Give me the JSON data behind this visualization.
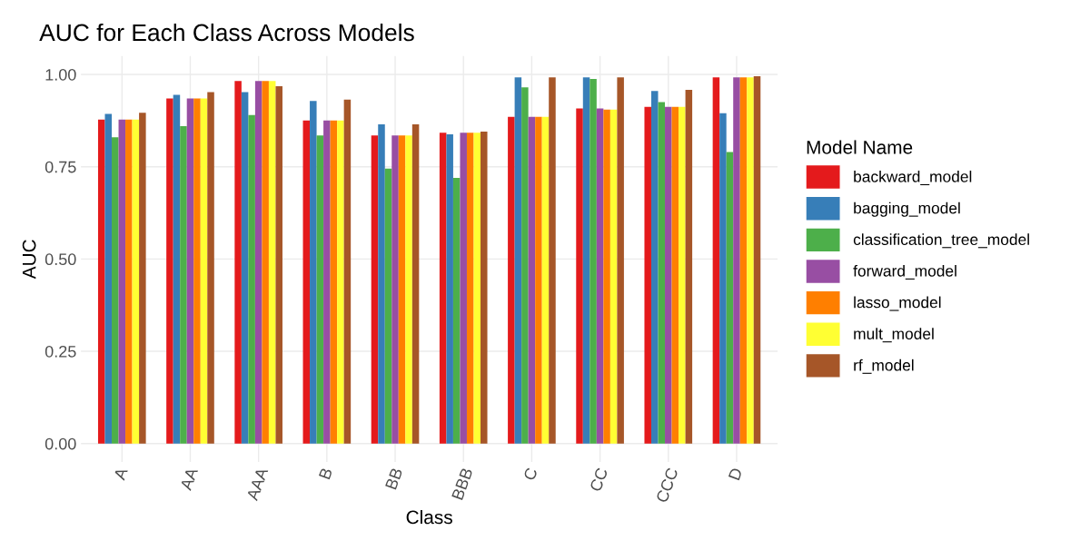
{
  "chart_data": {
    "type": "bar",
    "title": "AUC for Each Class Across Models",
    "xlabel": "Class",
    "ylabel": "AUC",
    "legend_title": "Model Name",
    "categories": [
      "A",
      "AA",
      "AAA",
      "B",
      "BB",
      "BBB",
      "C",
      "CC",
      "CCC",
      "D"
    ],
    "series": [
      {
        "name": "backward_model",
        "color": "#e41a1c",
        "values": [
          0.878,
          0.935,
          0.982,
          0.875,
          0.835,
          0.842,
          0.885,
          0.908,
          0.912,
          0.992
        ]
      },
      {
        "name": "bagging_model",
        "color": "#377eb8",
        "values": [
          0.893,
          0.945,
          0.952,
          0.928,
          0.865,
          0.838,
          0.992,
          0.992,
          0.955,
          0.895
        ]
      },
      {
        "name": "classification_tree_model",
        "color": "#4daf4a",
        "values": [
          0.83,
          0.86,
          0.89,
          0.835,
          0.745,
          0.72,
          0.965,
          0.988,
          0.925,
          0.79
        ]
      },
      {
        "name": "forward_model",
        "color": "#984ea3",
        "values": [
          0.878,
          0.935,
          0.982,
          0.875,
          0.835,
          0.842,
          0.885,
          0.908,
          0.912,
          0.992
        ]
      },
      {
        "name": "lasso_model",
        "color": "#ff7f00",
        "values": [
          0.878,
          0.935,
          0.982,
          0.875,
          0.835,
          0.842,
          0.885,
          0.905,
          0.912,
          0.992
        ]
      },
      {
        "name": "mult_model",
        "color": "#ffff33",
        "values": [
          0.878,
          0.935,
          0.982,
          0.875,
          0.835,
          0.842,
          0.885,
          0.905,
          0.912,
          0.992
        ]
      },
      {
        "name": "rf_model",
        "color": "#a65628",
        "values": [
          0.896,
          0.952,
          0.968,
          0.932,
          0.865,
          0.845,
          0.992,
          0.992,
          0.958,
          0.995
        ]
      }
    ],
    "ylim": [
      -0.05,
      1.05
    ],
    "yticks": [
      {
        "value": 0,
        "label": "0.00"
      },
      {
        "value": 0.25,
        "label": "0.25"
      },
      {
        "value": 0.5,
        "label": "0.50"
      },
      {
        "value": 0.75,
        "label": "0.75"
      },
      {
        "value": 1,
        "label": "1.00"
      }
    ],
    "grid": true,
    "legend": "right"
  }
}
